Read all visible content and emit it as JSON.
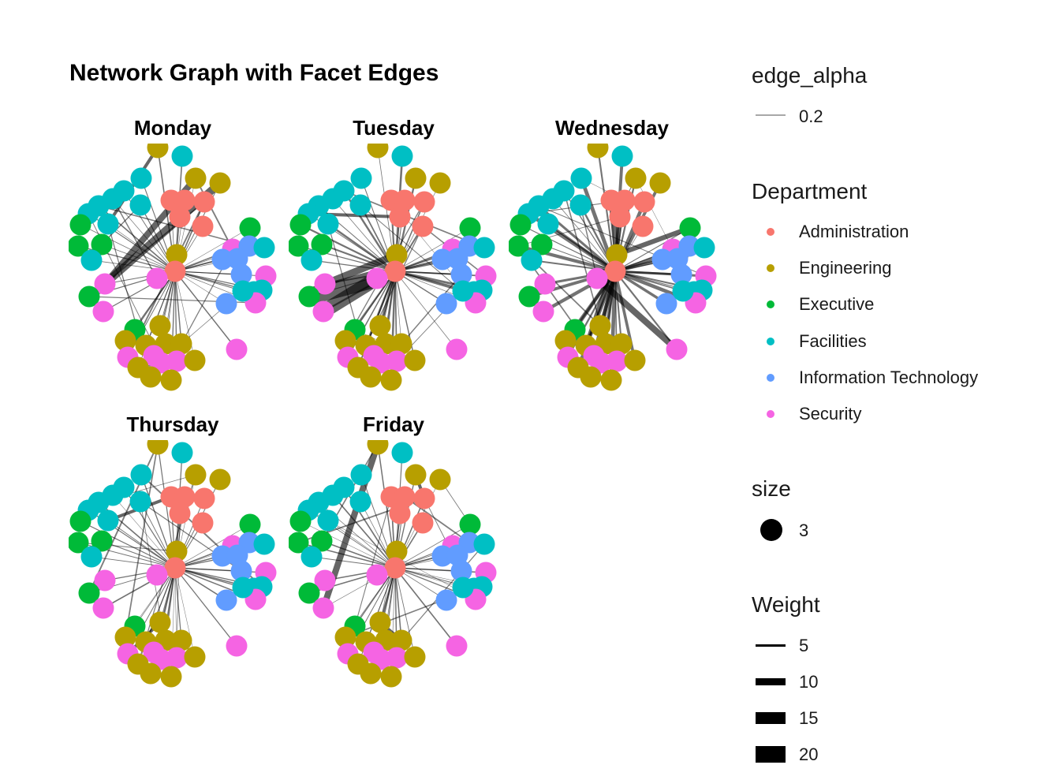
{
  "chart_data": {
    "type": "network",
    "title": "Network Graph with Facet Edges",
    "facets": [
      "Monday",
      "Tuesday",
      "Wednesday",
      "Thursday",
      "Friday"
    ],
    "departments": [
      {
        "name": "Administration",
        "color": "#F8766D"
      },
      {
        "name": "Engineering",
        "color": "#B79F00"
      },
      {
        "name": "Executive",
        "color": "#00BA38"
      },
      {
        "name": "Facilities",
        "color": "#00BFC4"
      },
      {
        "name": "Information Technology",
        "color": "#619CFF"
      },
      {
        "name": "Security",
        "color": "#F564E3"
      }
    ],
    "legends": {
      "edge_alpha": {
        "title": "edge_alpha",
        "value": "0.2"
      },
      "department": {
        "title": "Department"
      },
      "size": {
        "title": "size",
        "value": "3"
      },
      "weight": {
        "title": "Weight",
        "values": [
          "5",
          "10",
          "15",
          "20"
        ]
      }
    }
  }
}
